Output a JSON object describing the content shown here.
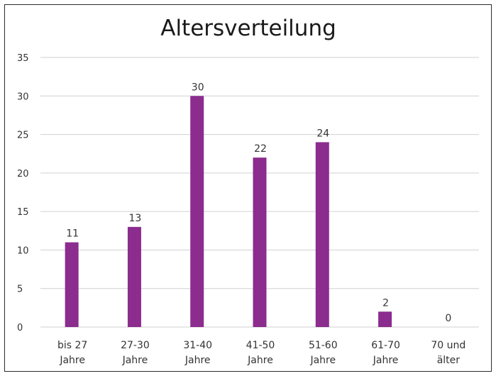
{
  "chart_data": {
    "type": "bar",
    "title": "Altersverteilung",
    "categories": [
      [
        "bis 27",
        "Jahre"
      ],
      [
        "27-30",
        "Jahre"
      ],
      [
        "31-40",
        "Jahre"
      ],
      [
        "41-50",
        "Jahre"
      ],
      [
        "51-60",
        "Jahre"
      ],
      [
        "61-70",
        "Jahre"
      ],
      [
        "70 und",
        "älter"
      ]
    ],
    "values": [
      11,
      13,
      30,
      22,
      24,
      2,
      0
    ],
    "data_labels": [
      "11",
      "13",
      "30",
      "22",
      "24",
      "2",
      "0"
    ],
    "y_ticks": [
      "0",
      "5",
      "10",
      "15",
      "20",
      "25",
      "30",
      "35"
    ],
    "ylim": [
      0,
      35
    ],
    "grid": true,
    "legend": "none",
    "colors": {
      "bar": "#8B2C8E",
      "grid": "#d0d0d0",
      "border": "#2b2b2b"
    }
  }
}
